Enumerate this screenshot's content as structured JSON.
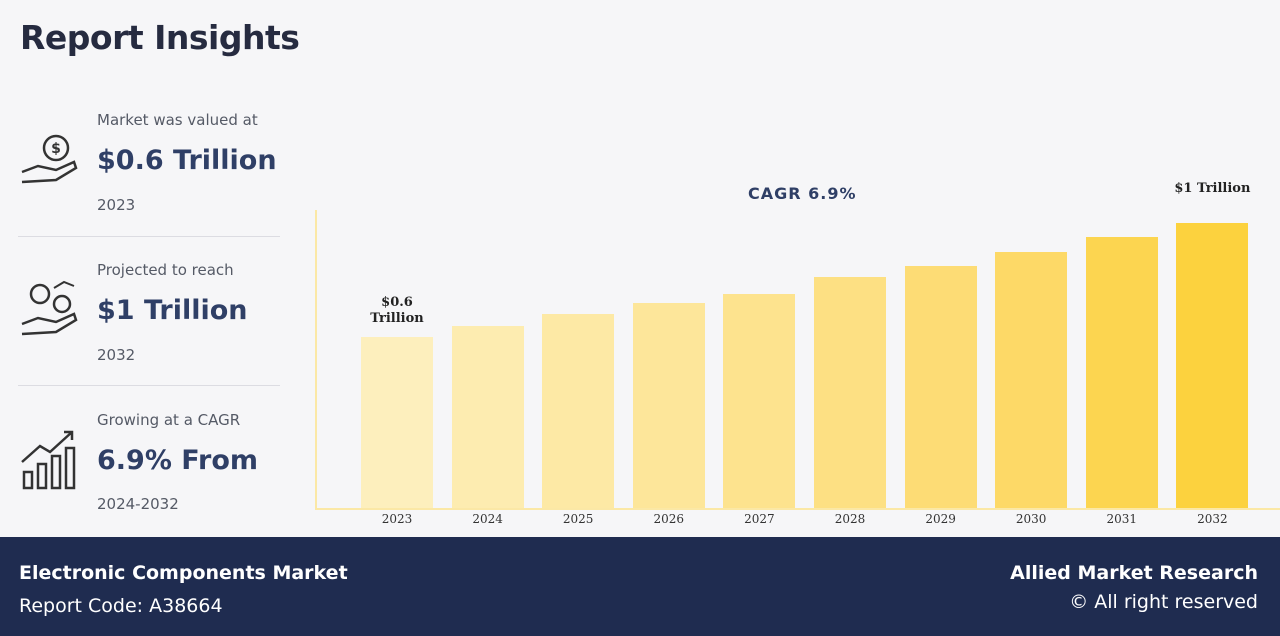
{
  "title": "Report Insights",
  "insights": [
    {
      "label": "Market was valued at",
      "value": "$0.6 Trillion",
      "sub": "2023"
    },
    {
      "label": "Projected to reach",
      "value": "$1 Trillion",
      "sub": "2032"
    },
    {
      "label": "Growing at a CAGR",
      "value": "6.9% From",
      "sub": "2024-2032"
    }
  ],
  "chart_data": {
    "type": "bar",
    "annotation": "CAGR 6.9%",
    "categories": [
      "2023",
      "2024",
      "2025",
      "2026",
      "2027",
      "2028",
      "2029",
      "2030",
      "2031",
      "2032"
    ],
    "values": [
      0.6,
      0.64,
      0.68,
      0.72,
      0.75,
      0.81,
      0.85,
      0.9,
      0.95,
      1
    ],
    "value_labels": [
      "$0.6 Trillion",
      null,
      null,
      null,
      null,
      null,
      null,
      null,
      null,
      "$1 Trillion"
    ],
    "colors": [
      "#fdefbd",
      "#fdecb0",
      "#fde9a5",
      "#fde69a",
      "#fde38e",
      "#fde083",
      "#fddc75",
      "#fdd967",
      "#fcd550",
      "#fcd23e"
    ]
  },
  "footer": {
    "market": "Electronic Components Market",
    "code": "Report Code: A38664",
    "brand": "Allied Market Research",
    "rights": "© All right reserved"
  }
}
